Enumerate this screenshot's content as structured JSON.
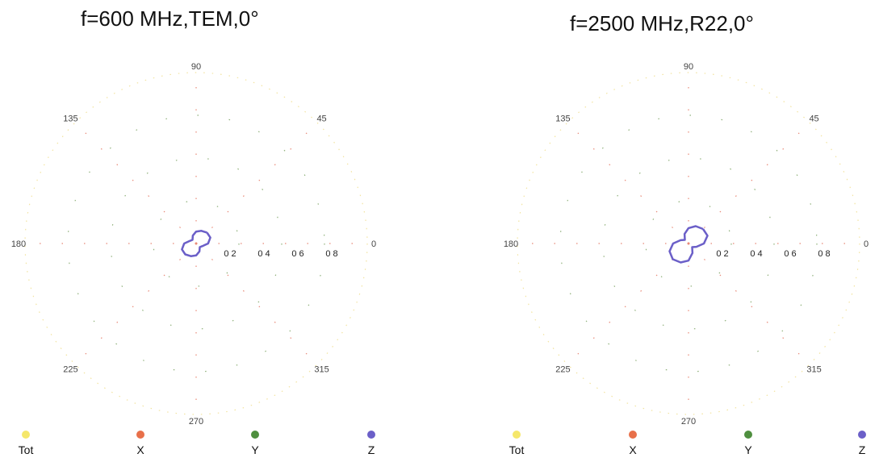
{
  "chart_data": [
    {
      "type": "polar",
      "title": "f=600 MHz,TEM,0°",
      "angle_labels": [
        "90",
        "45",
        "0",
        "315",
        "270",
        "225",
        "180",
        "135"
      ],
      "radial_tick_labels": [
        "0 2",
        "0 4",
        "0 6",
        "0 8"
      ],
      "rmax": 1.0,
      "grid": true,
      "series": [
        {
          "name": "Tot",
          "color": "#f5e76a",
          "values": []
        },
        {
          "name": "X",
          "color": "#e8704a",
          "values": []
        },
        {
          "name": "Y",
          "color": "#4f8f3f",
          "values": []
        },
        {
          "name": "Z",
          "color": "#6b5fc8",
          "values": [
            0.09,
            0.08,
            0.07,
            0.05,
            0.03,
            0.04,
            0.07,
            0.09,
            0.09,
            0.08,
            0.07,
            0.05,
            0.03,
            0.04,
            0.07,
            0.09
          ]
        }
      ]
    },
    {
      "type": "polar",
      "title": "f=2500 MHz,R22,0°",
      "angle_labels": [
        "90",
        "45",
        "0",
        "315",
        "270",
        "225",
        "180",
        "135"
      ],
      "radial_tick_labels": [
        "0 2",
        "0 4",
        "0 6",
        "0 8"
      ],
      "rmax": 1.0,
      "grid": true,
      "series": [
        {
          "name": "Tot",
          "color": "#f5e76a",
          "values": []
        },
        {
          "name": "X",
          "color": "#e8704a",
          "values": []
        },
        {
          "name": "Y",
          "color": "#4f8f3f",
          "values": []
        },
        {
          "name": "Z",
          "color": "#6b5fc8",
          "values": [
            0.12,
            0.11,
            0.09,
            0.06,
            0.03,
            0.05,
            0.09,
            0.12,
            0.13,
            0.12,
            0.1,
            0.06,
            0.03,
            0.05,
            0.09,
            0.12
          ]
        }
      ]
    }
  ]
}
